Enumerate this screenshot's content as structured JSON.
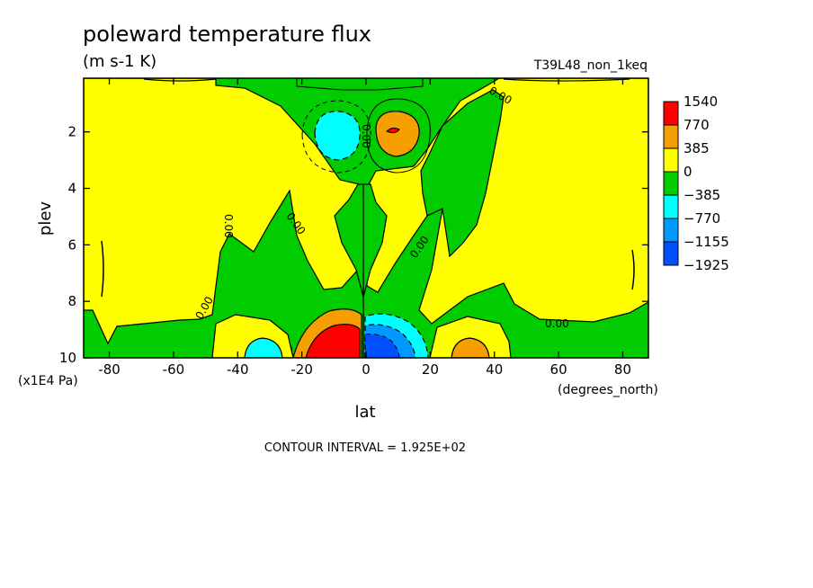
{
  "chart_data": {
    "type": "contour",
    "title": "poleward temperature flux",
    "units": "(m s-1 K)",
    "run_label": "T39L48_non_1keq",
    "xlabel": "lat",
    "ylabel": "plev",
    "x_unit_label": "(degrees_north)",
    "y_unit_label": "(x1E4 Pa)",
    "xlim": [
      -88,
      88
    ],
    "ylim": [
      10,
      0.1
    ],
    "x_ticks": [
      -80,
      -60,
      -40,
      -20,
      0,
      20,
      40,
      60,
      80
    ],
    "x_tick_labels": [
      "-80",
      "-60",
      "-40",
      "-20",
      "0",
      "20",
      "40",
      "60",
      "80"
    ],
    "y_ticks": [
      2,
      4,
      6,
      8,
      10
    ],
    "y_tick_labels": [
      "2",
      "4",
      "6",
      "8",
      "10"
    ],
    "contour_interval_text": "CONTOUR INTERVAL = 1.925E+02",
    "legend": [
      {
        "label": "1540",
        "color": "#ff0000"
      },
      {
        "label": "770",
        "color": "#f5a000"
      },
      {
        "label": "385",
        "color": "#ffff00"
      },
      {
        "label": "0",
        "color": "#00cc00"
      },
      {
        "label": "−385",
        "color": "#00ffff"
      },
      {
        "label": "−770",
        "color": "#0099ff"
      },
      {
        "label": "−1155",
        "color": "#0050ff"
      },
      {
        "label": "−1925",
        "color": ""
      }
    ],
    "contour_labels": [
      "0.00",
      "0.00",
      "0.00",
      "0.00",
      "0.00",
      "0.00",
      "0.00"
    ],
    "extrema": [
      {
        "lat": 10,
        "plev": 2.0,
        "value": 1540
      },
      {
        "lat": -8,
        "plev": 2.0,
        "value": -770
      },
      {
        "lat": -5,
        "plev": 9.2,
        "value": 1540
      },
      {
        "lat": 5,
        "plev": 9.5,
        "value": -1925
      },
      {
        "lat": -32,
        "plev": 9.6,
        "value": -770
      },
      {
        "lat": 32,
        "plev": 9.6,
        "value": 770
      }
    ]
  }
}
